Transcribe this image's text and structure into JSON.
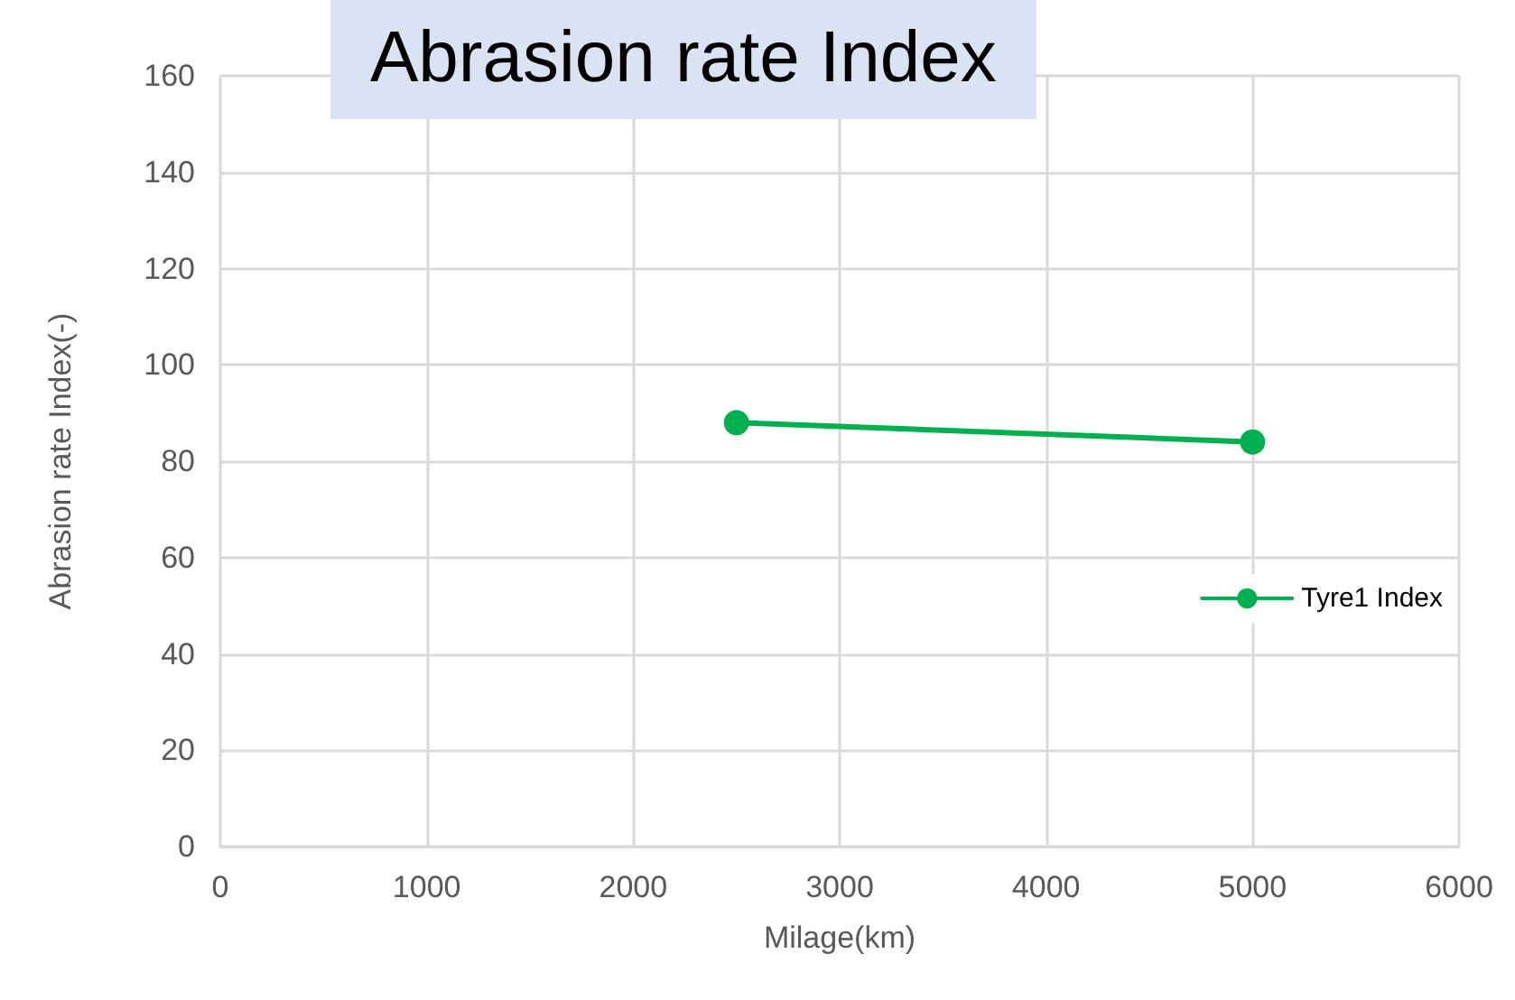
{
  "chart_data": {
    "type": "line",
    "title": "Abrasion rate Index",
    "xlabel": "Milage(km)",
    "ylabel": "Abrasion rate Index(-)",
    "x": [
      2500,
      5000
    ],
    "series": [
      {
        "name": "Tyre1 Index",
        "color": "#00b050",
        "values": [
          88,
          84
        ]
      }
    ],
    "xlim": [
      0,
      6000
    ],
    "xticks": [
      0,
      1000,
      2000,
      3000,
      4000,
      5000,
      6000
    ],
    "ylim": [
      0,
      160
    ],
    "yticks": [
      0,
      20,
      40,
      60,
      80,
      100,
      120,
      140,
      160
    ],
    "grid": true,
    "legend": "right",
    "marker": "circle",
    "line_style": "solid"
  }
}
